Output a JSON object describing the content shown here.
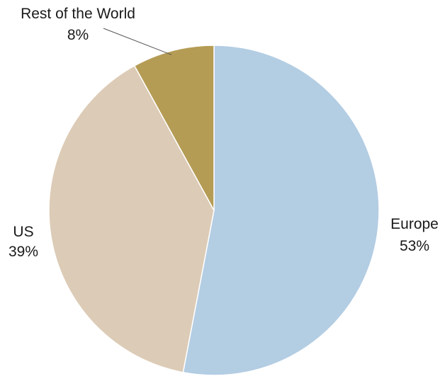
{
  "chart_data": {
    "type": "pie",
    "slices": [
      {
        "label": "Europe",
        "value": 53,
        "value_label": "53%",
        "color": "#b3cde3"
      },
      {
        "label": "US",
        "value": 39,
        "value_label": "39%",
        "color": "#dccbb6"
      },
      {
        "label": "Rest of the World",
        "value": 8,
        "value_label": "8%",
        "color": "#b59c55"
      }
    ],
    "start_angle_deg": 0,
    "direction": "clockwise",
    "legend": "none",
    "data_labels": "outside"
  }
}
